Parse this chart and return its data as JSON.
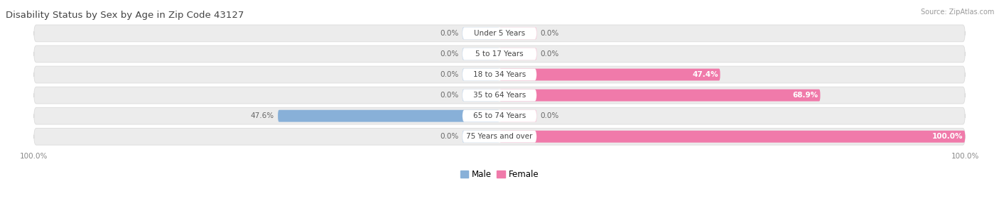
{
  "title": "Disability Status by Sex by Age in Zip Code 43127",
  "source": "Source: ZipAtlas.com",
  "categories": [
    "Under 5 Years",
    "5 to 17 Years",
    "18 to 34 Years",
    "35 to 64 Years",
    "65 to 74 Years",
    "75 Years and over"
  ],
  "male_values": [
    0.0,
    0.0,
    0.0,
    0.0,
    47.6,
    0.0
  ],
  "female_values": [
    0.0,
    0.0,
    47.4,
    68.9,
    0.0,
    100.0
  ],
  "male_color": "#88b0d8",
  "female_color": "#f07aaa",
  "male_zero_color": "#b8cfe8",
  "female_zero_color": "#f8b8d0",
  "row_bg_color": "#ececec",
  "row_bg_border": "#dddddd",
  "title_color": "#444444",
  "label_color": "#666666",
  "source_color": "#999999",
  "zero_bar_width": 8.0,
  "max_val": 100.0,
  "fig_width": 14.06,
  "fig_height": 3.04
}
